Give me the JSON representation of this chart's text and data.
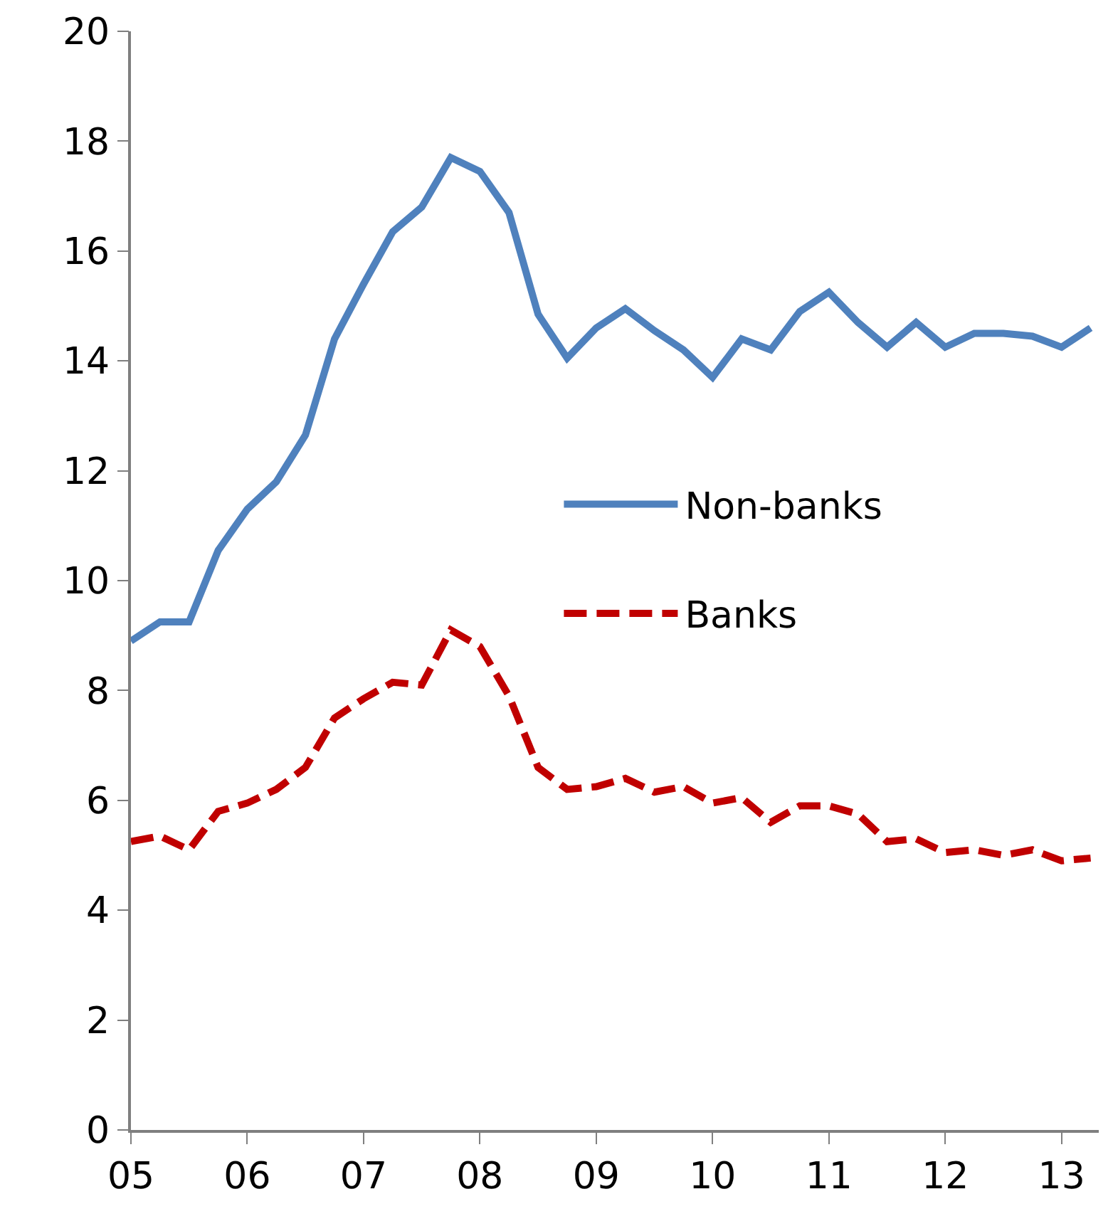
{
  "chart_data": {
    "type": "line",
    "x": [
      2005,
      2005.25,
      2005.5,
      2005.75,
      2006,
      2006.25,
      2006.5,
      2006.75,
      2007,
      2007.25,
      2007.5,
      2007.75,
      2008,
      2008.25,
      2008.5,
      2008.75,
      2009,
      2009.25,
      2009.5,
      2009.75,
      2010,
      2010.25,
      2010.5,
      2010.75,
      2011,
      2011.25,
      2011.5,
      2011.75,
      2012,
      2012.25,
      2012.5,
      2012.75,
      2013,
      2013.25
    ],
    "series": [
      {
        "name": "Non-banks",
        "color": "#4f81bd",
        "line_style": "solid",
        "values": [
          8.9,
          9.25,
          9.25,
          10.55,
          11.3,
          11.8,
          12.65,
          14.4,
          15.4,
          16.35,
          16.8,
          17.7,
          17.45,
          16.7,
          14.85,
          14.05,
          14.6,
          14.95,
          14.55,
          14.2,
          13.7,
          14.4,
          14.2,
          14.9,
          15.25,
          14.7,
          14.25,
          14.7,
          14.25,
          14.5,
          14.5,
          14.45,
          14.25,
          14.6
        ]
      },
      {
        "name": "Banks",
        "color": "#c00000",
        "line_style": "dashed",
        "values": [
          5.25,
          5.35,
          5.1,
          5.8,
          5.95,
          6.2,
          6.6,
          7.5,
          7.85,
          8.15,
          8.1,
          9.1,
          8.8,
          7.9,
          6.6,
          6.2,
          6.25,
          6.4,
          6.15,
          6.25,
          5.95,
          6.05,
          5.6,
          5.9,
          5.9,
          5.75,
          5.25,
          5.3,
          5.05,
          5.1,
          5.0,
          5.1,
          4.9,
          4.95
        ]
      }
    ],
    "xlim": [
      2005,
      2013.32
    ],
    "xticks": [
      {
        "value": 2005,
        "label": "05"
      },
      {
        "value": 2006,
        "label": "06"
      },
      {
        "value": 2007,
        "label": "07"
      },
      {
        "value": 2008,
        "label": "08"
      },
      {
        "value": 2009,
        "label": "09"
      },
      {
        "value": 2010,
        "label": "10"
      },
      {
        "value": 2011,
        "label": "11"
      },
      {
        "value": 2012,
        "label": "12"
      },
      {
        "value": 2013,
        "label": "13"
      }
    ],
    "ylim": [
      0,
      20
    ],
    "yticks": [
      0,
      2,
      4,
      6,
      8,
      10,
      12,
      14,
      16,
      18,
      20
    ],
    "grid": false,
    "legend": "right",
    "marker": "none"
  }
}
